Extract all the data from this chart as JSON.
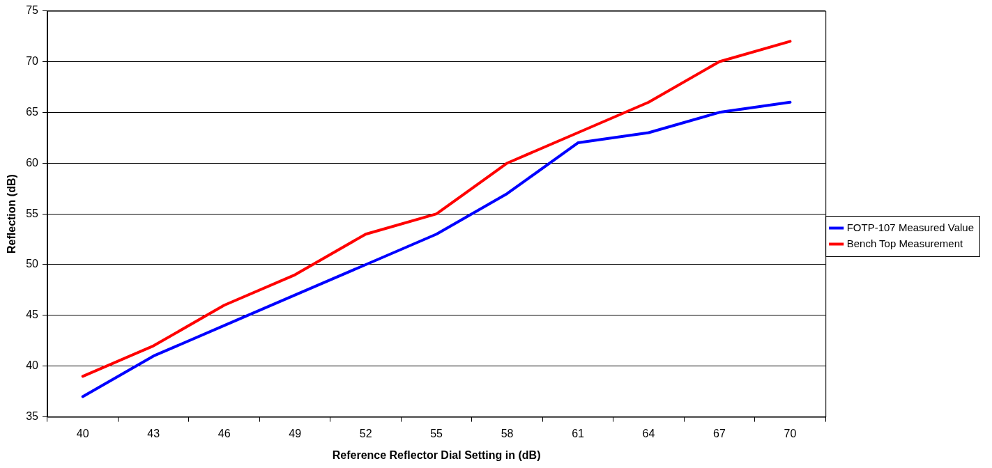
{
  "chart_data": {
    "type": "line",
    "xlabel": "Reference Reflector Dial Setting in (dB)",
    "ylabel": "Reflection (dB)",
    "categories": [
      "40",
      "43",
      "46",
      "49",
      "52",
      "55",
      "58",
      "61",
      "64",
      "67",
      "70"
    ],
    "series": [
      {
        "name": "FOTP-107 Measured Value",
        "color": "#0000ff",
        "values": [
          37,
          41,
          44,
          47,
          50,
          53,
          57,
          62,
          63,
          65,
          66
        ]
      },
      {
        "name": "Bench Top Measurement",
        "color": "#ff0000",
        "values": [
          39,
          42,
          46,
          49,
          53,
          55,
          60,
          63,
          66,
          70,
          72
        ]
      }
    ],
    "ylim": [
      35,
      75
    ],
    "yticks": [
      35,
      40,
      45,
      50,
      55,
      60,
      65,
      70,
      75
    ],
    "grid": "y",
    "legend": "right",
    "marker": "none",
    "line_style": "solid"
  }
}
